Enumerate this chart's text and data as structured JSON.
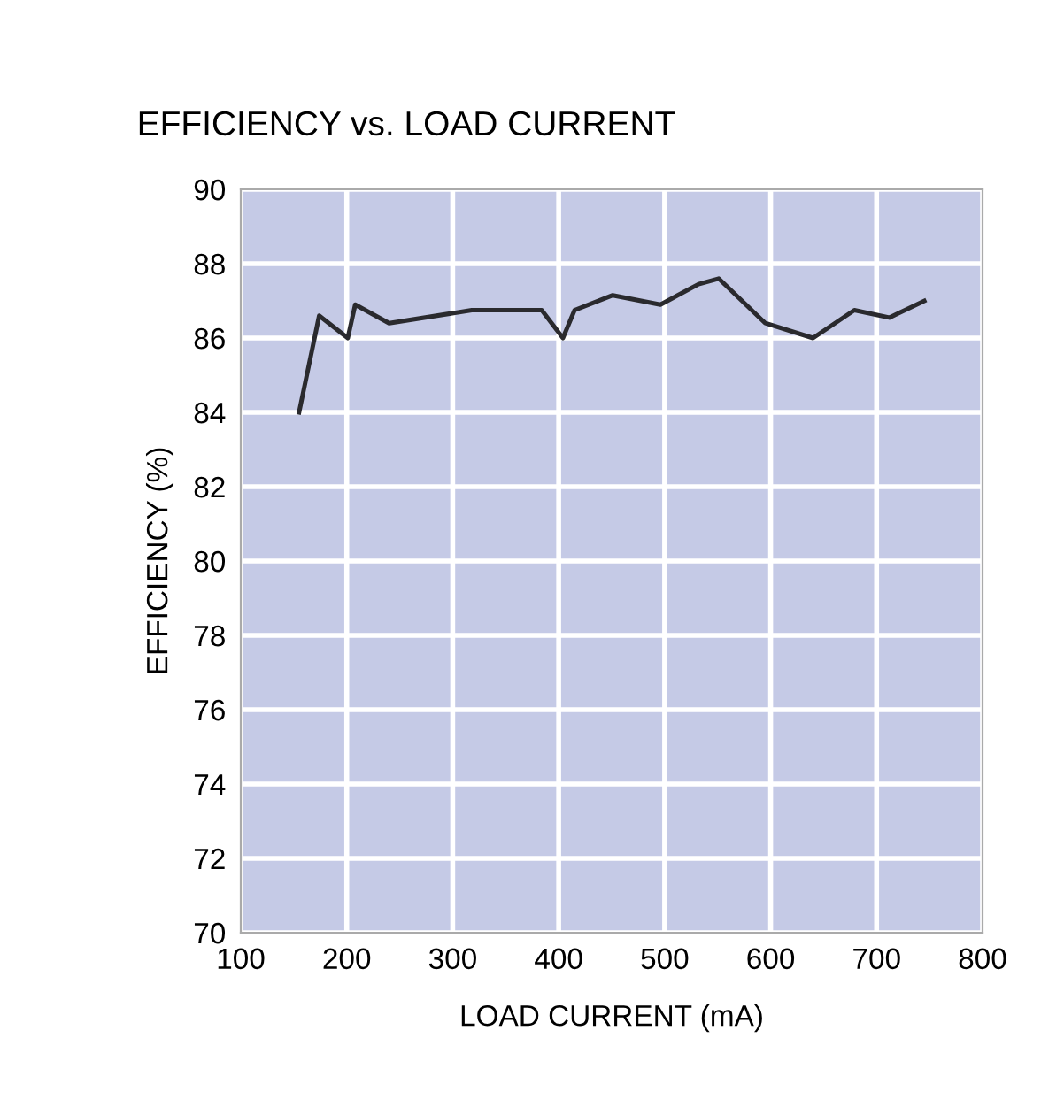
{
  "chart_data": {
    "type": "line",
    "title": "EFFICIENCY vs. LOAD CURRENT",
    "xlabel": "LOAD CURRENT (mA)",
    "ylabel": "EFFICIENCY (%)",
    "series": [
      {
        "color": "#2a2a2e",
        "x": [
          155,
          174,
          201,
          208,
          240,
          318,
          384,
          404,
          415,
          451,
          496,
          532,
          551,
          595,
          640,
          679,
          712,
          745
        ],
        "values": [
          84.0,
          86.6,
          86.0,
          86.9,
          86.4,
          86.75,
          86.75,
          86.0,
          86.75,
          87.15,
          86.9,
          87.45,
          87.6,
          86.4,
          86.0,
          86.75,
          86.55,
          87.0
        ]
      }
    ],
    "xlim": [
      100,
      800
    ],
    "xticks": [
      100,
      200,
      300,
      400,
      500,
      600,
      700,
      800
    ],
    "ylim": [
      70,
      90
    ],
    "yticks": [
      70,
      72,
      74,
      76,
      78,
      80,
      82,
      84,
      86,
      88,
      90
    ],
    "grid": true,
    "legend": false,
    "marker": "none",
    "line_style": "solid"
  }
}
